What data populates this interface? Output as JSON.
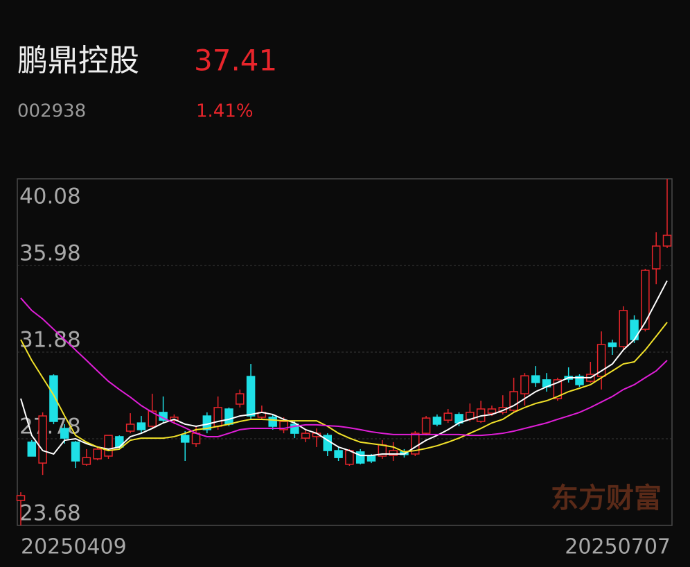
{
  "header": {
    "name": "鹏鼎控股",
    "price": "37.41",
    "code": "002938",
    "change": "1.41%"
  },
  "chart_data": {
    "type": "candlestick",
    "categories": [
      "20250409",
      null,
      null,
      null,
      null,
      null,
      null,
      null,
      null,
      null,
      null,
      null,
      null,
      null,
      null,
      null,
      null,
      null,
      null,
      null,
      null,
      null,
      null,
      null,
      null,
      null,
      null,
      null,
      null,
      null,
      null,
      null,
      null,
      null,
      null,
      null,
      null,
      null,
      null,
      null,
      null,
      null,
      null,
      null,
      null,
      null,
      null,
      null,
      null,
      null,
      null,
      null,
      null,
      null,
      null,
      null,
      null,
      null,
      null,
      "20250707"
    ],
    "open": [
      24.86,
      27.62,
      26.63,
      30.76,
      28.27,
      27.62,
      26.57,
      26.83,
      26.96,
      27.88,
      28.14,
      28.53,
      28.37,
      29.03,
      28.66,
      27.94,
      27.55,
      28.86,
      28.37,
      29.19,
      29.42,
      30.73,
      28.8,
      28.8,
      28.21,
      28.47,
      27.81,
      27.88,
      27.94,
      27.22,
      26.57,
      27.16,
      26.96,
      26.96,
      26.99,
      27.16,
      27.06,
      28.04,
      28.8,
      28.66,
      28.93,
      28.7,
      28.6,
      28.99,
      29.03,
      29.13,
      29.91,
      30.76,
      30.57,
      29.68,
      30.73,
      30.73,
      30.5,
      30.73,
      32.31,
      32.14,
      33.39,
      32.96,
      35.82,
      36.9
    ],
    "high": [
      25.25,
      27.72,
      29.03,
      30.83,
      28.47,
      27.68,
      27.29,
      27.39,
      27.94,
      27.94,
      28.99,
      28.86,
      29.91,
      29.78,
      28.93,
      28.14,
      28.37,
      29.03,
      29.78,
      29.26,
      30.11,
      31.32,
      29.35,
      28.93,
      28.8,
      28.6,
      28.21,
      28.27,
      28.04,
      27.39,
      27.29,
      27.29,
      27.06,
      27.72,
      27.62,
      27.29,
      28.14,
      28.86,
      28.93,
      29.19,
      29.03,
      29.45,
      29.58,
      29.35,
      29.84,
      30.67,
      30.89,
      31.22,
      30.89,
      30.67,
      31.16,
      30.83,
      31.42,
      32.86,
      32.47,
      34.05,
      33.62,
      35.82,
      37.55,
      40.08
    ],
    "low": [
      23.68,
      26.96,
      26.07,
      28.47,
      27.55,
      26.4,
      26.5,
      26.76,
      26.83,
      27.29,
      28.04,
      28.04,
      28.27,
      28.53,
      28.47,
      26.73,
      27.39,
      28.04,
      28.21,
      28.37,
      29.26,
      28.7,
      28.7,
      28.21,
      28.04,
      27.81,
      27.62,
      27.39,
      26.96,
      26.73,
      26.5,
      26.57,
      26.63,
      26.83,
      26.73,
      26.89,
      26.96,
      27.94,
      28.37,
      28.53,
      28.37,
      28.6,
      28.53,
      28.86,
      28.93,
      29.03,
      29.35,
      30.24,
      30.01,
      29.58,
      30.44,
      30.24,
      30.44,
      30.11,
      31.75,
      31.98,
      32.31,
      32.86,
      35.09,
      36.8
    ],
    "close": [
      25.09,
      26.96,
      28.86,
      28.6,
      27.81,
      26.73,
      26.89,
      27.29,
      27.94,
      27.39,
      28.47,
      28.21,
      29.09,
      28.66,
      28.8,
      27.62,
      28.04,
      28.21,
      29.26,
      28.47,
      29.91,
      28.86,
      29.03,
      28.37,
      28.6,
      28.04,
      28.04,
      28.04,
      27.22,
      26.89,
      27.22,
      26.63,
      26.73,
      27.49,
      27.22,
      27.03,
      28.04,
      28.76,
      28.47,
      28.99,
      28.53,
      29.03,
      29.19,
      29.19,
      29.26,
      30.01,
      30.76,
      30.44,
      30.24,
      30.57,
      30.6,
      30.34,
      30.83,
      32.24,
      32.14,
      33.85,
      32.47,
      35.75,
      36.9,
      37.41
    ],
    "up_color": "#e8252b",
    "down_color": "#1fe0e6",
    "series": [
      {
        "color": "#ffffff",
        "values": [
          29.68,
          27.94,
          27.22,
          27.06,
          27.71,
          27.78,
          27.55,
          27.39,
          27.29,
          27.39,
          27.88,
          28.04,
          28.27,
          28.53,
          28.7,
          28.47,
          28.37,
          28.47,
          28.6,
          28.7,
          28.86,
          28.93,
          29.03,
          28.93,
          28.7,
          28.53,
          28.21,
          28.04,
          27.71,
          27.39,
          27.22,
          26.99,
          26.99,
          27.06,
          27.06,
          27.06,
          27.39,
          27.71,
          27.94,
          28.21,
          28.53,
          28.7,
          28.86,
          28.93,
          29.12,
          29.35,
          29.68,
          30.01,
          30.24,
          30.44,
          30.67,
          30.67,
          30.67,
          30.99,
          31.32,
          31.98,
          32.47,
          33.29,
          34.27,
          35.26
        ]
      },
      {
        "color": "#f2e22a",
        "values": [
          32.47,
          31.49,
          30.67,
          29.85,
          28.86,
          27.94,
          27.62,
          27.39,
          27.22,
          27.29,
          27.71,
          27.81,
          27.81,
          27.81,
          27.88,
          28.04,
          28.21,
          28.27,
          28.37,
          28.47,
          28.6,
          28.7,
          28.7,
          28.67,
          28.63,
          28.63,
          28.63,
          28.63,
          28.37,
          28.04,
          27.81,
          27.62,
          27.55,
          27.48,
          27.39,
          27.16,
          27.22,
          27.32,
          27.45,
          27.62,
          27.81,
          28.04,
          28.27,
          28.53,
          28.7,
          29.03,
          29.26,
          29.45,
          29.58,
          29.78,
          30.01,
          30.17,
          30.34,
          30.67,
          30.99,
          31.32,
          31.42,
          31.98,
          32.63,
          33.29
        ]
      },
      {
        "color": "#e01ed8",
        "values": [
          34.44,
          33.85,
          33.45,
          32.96,
          32.47,
          31.98,
          31.49,
          30.99,
          30.5,
          30.11,
          29.75,
          29.35,
          29.03,
          28.76,
          28.53,
          28.3,
          28.04,
          27.88,
          27.88,
          28.04,
          28.21,
          28.27,
          28.27,
          28.27,
          28.27,
          28.37,
          28.44,
          28.44,
          28.4,
          28.37,
          28.3,
          28.21,
          28.11,
          28.04,
          27.98,
          27.98,
          27.98,
          27.98,
          27.98,
          27.98,
          27.98,
          27.94,
          27.94,
          27.98,
          28.04,
          28.14,
          28.27,
          28.4,
          28.53,
          28.7,
          28.86,
          29.03,
          29.26,
          29.52,
          29.78,
          30.11,
          30.34,
          30.67,
          30.99,
          31.49
        ]
      }
    ],
    "ylim": [
      23.68,
      40.08
    ],
    "yticks": [
      40.08,
      35.98,
      31.88,
      27.78,
      23.68
    ],
    "grid": true,
    "watermark": "东方财富"
  }
}
